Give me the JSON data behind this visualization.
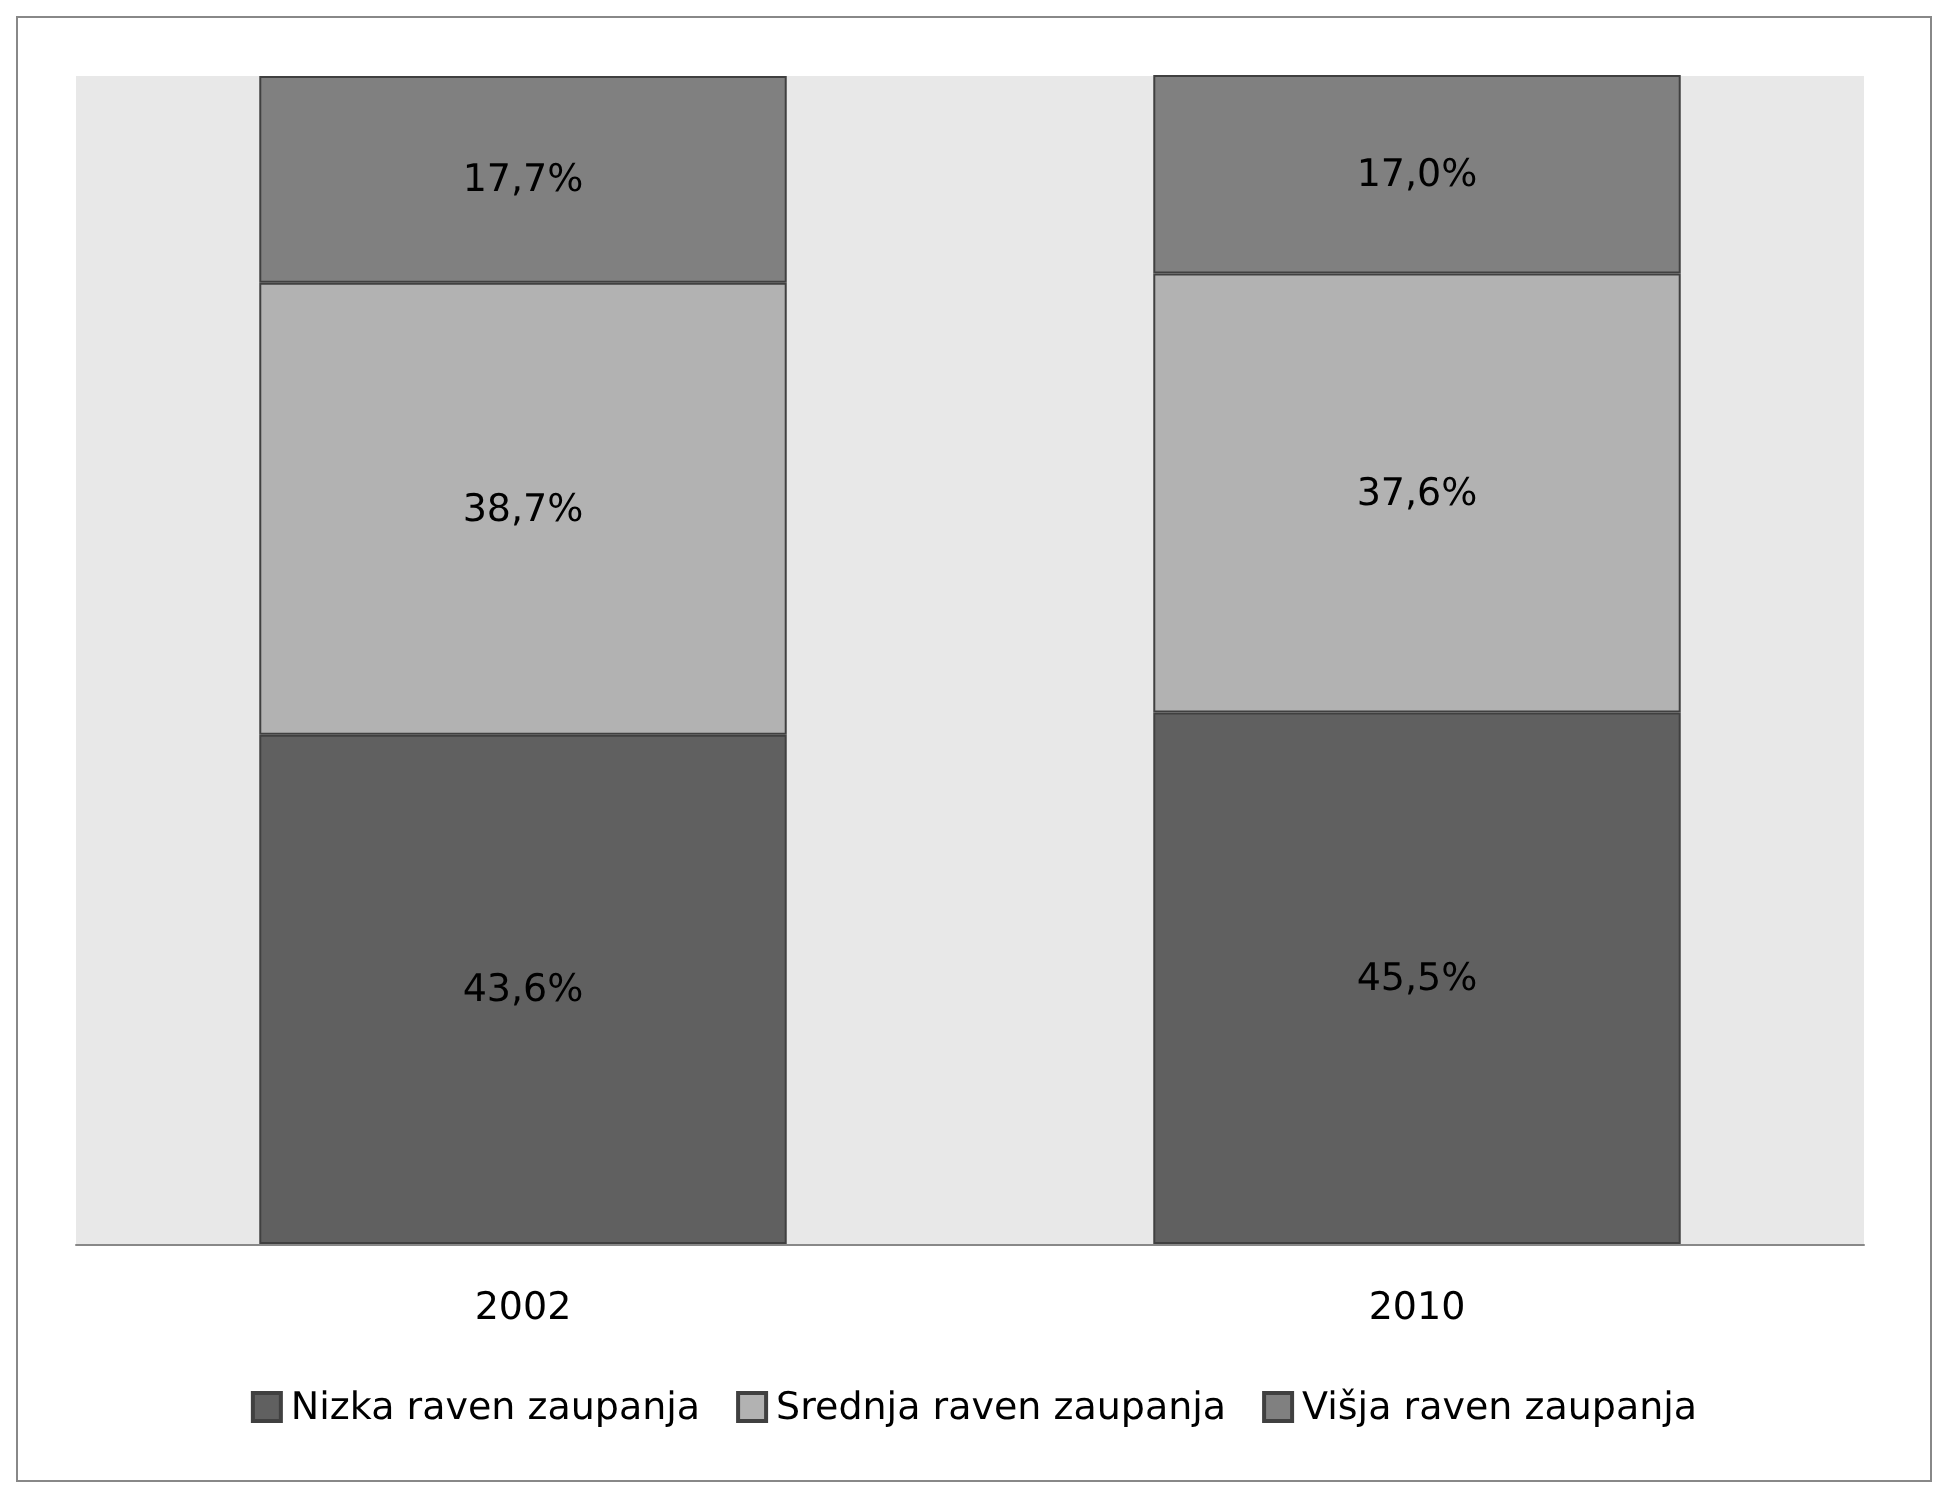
{
  "chart_data": {
    "type": "bar",
    "stacked": true,
    "categories": [
      "2002",
      "2010"
    ],
    "ylim": [
      0,
      100
    ],
    "tick_labels": "x",
    "legend": "bottom",
    "series": [
      {
        "name": "Nizka raven zaupanja",
        "color": "#606060",
        "values": [
          43.6,
          45.5
        ],
        "value_labels": [
          "43,6%",
          "45,5%"
        ]
      },
      {
        "name": "Srednja raven zaupanja",
        "color": "#b2b2b2",
        "values": [
          38.7,
          37.6
        ],
        "value_labels": [
          "38,7%",
          "37,6%"
        ]
      },
      {
        "name": "Višja raven zaupanja",
        "color": "#808080",
        "values": [
          17.7,
          17.0
        ],
        "value_labels": [
          "17,7%",
          "17,0%"
        ]
      }
    ]
  }
}
